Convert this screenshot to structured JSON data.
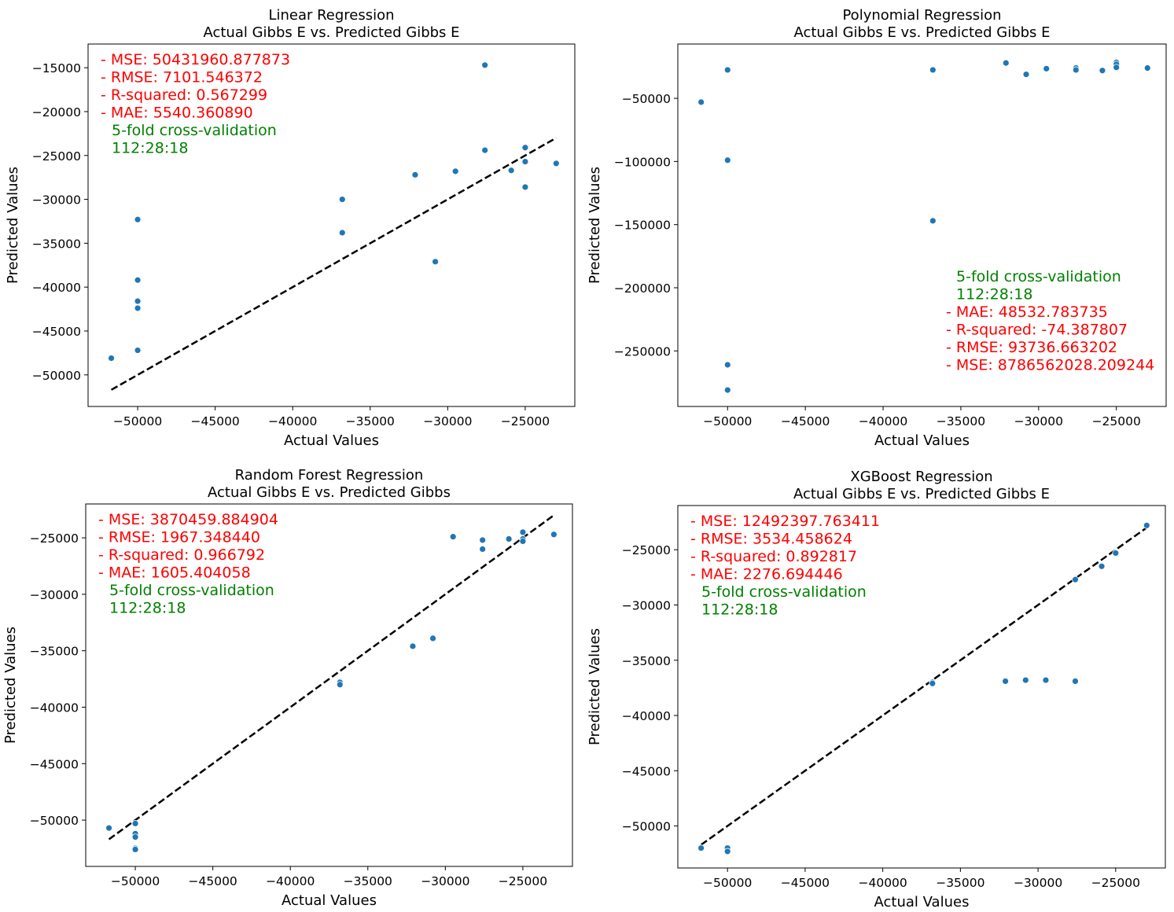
{
  "chart_data": [
    {
      "type": "scatter",
      "title": "Linear Regression",
      "subtitle": "Actual Gibbs E vs. Predicted Gibbs E",
      "xlabel": "Actual Values",
      "ylabel": "Predicted Values",
      "xlim": [
        -53200,
        -21800
      ],
      "ylim": [
        -53600,
        -12300
      ],
      "xticks": [
        -50000,
        -45000,
        -40000,
        -35000,
        -30000,
        -25000
      ],
      "yticks": [
        -50000,
        -45000,
        -40000,
        -35000,
        -30000,
        -25000,
        -20000,
        -15000
      ],
      "tick_labels_x": [
        "−50000",
        "−45000",
        "−40000",
        "−35000",
        "−30000",
        "−25000"
      ],
      "tick_labels_y": [
        "−50000",
        "−45000",
        "−40000",
        "−35000",
        "−30000",
        "−25000",
        "−20000",
        "−15000"
      ],
      "grid": false,
      "reference_line": {
        "x": [
          -51700,
          -23000
        ],
        "y": [
          -51700,
          -23000
        ],
        "style": "dashed",
        "color": "#000000"
      },
      "point_color": "#1f77b4",
      "points": {
        "x": [
          -51700,
          -50000,
          -50000,
          -50000,
          -50000,
          -50000,
          -36800,
          -36800,
          -32100,
          -30800,
          -29500,
          -27600,
          -27600,
          -25900,
          -25000,
          -25000,
          -25000,
          -23000
        ],
        "y": [
          -48100,
          -32300,
          -39200,
          -41600,
          -42400,
          -47200,
          -30000,
          -33800,
          -27200,
          -37100,
          -26800,
          -14700,
          -24400,
          -26700,
          -24100,
          -25700,
          -28600,
          -25900
        ]
      },
      "annotations": [
        {
          "text": "- MSE: 50431960.877873",
          "color": "#ff0000"
        },
        {
          "text": "- RMSE: 7101.546372",
          "color": "#ff0000"
        },
        {
          "text": "- R-squared: 0.567299",
          "color": "#ff0000"
        },
        {
          "text": "- MAE: 5540.360890",
          "color": "#ff0000"
        },
        {
          "text": "5-fold cross-validation",
          "color": "#008000"
        },
        {
          "text": "112:28:18",
          "color": "#008000"
        }
      ]
    },
    {
      "type": "scatter",
      "title": "Polynomial Regression",
      "subtitle": "Actual Gibbs E vs. Predicted Gibbs E",
      "xlabel": "Actual Values",
      "ylabel": "Predicted Values",
      "xlim": [
        -53200,
        -21800
      ],
      "ylim": [
        -294000,
        -7000
      ],
      "xticks": [
        -50000,
        -45000,
        -40000,
        -35000,
        -30000,
        -25000
      ],
      "yticks": [
        -250000,
        -200000,
        -150000,
        -100000,
        -50000
      ],
      "tick_labels_x": [
        "−50000",
        "−45000",
        "−40000",
        "−35000",
        "−30000",
        "−25000"
      ],
      "tick_labels_y": [
        "−250000",
        "−200000",
        "−150000",
        "−100000",
        "−50000"
      ],
      "grid": false,
      "point_color": "#1f77b4",
      "points": {
        "x": [
          -51700,
          -50000,
          -50000,
          -50000,
          -50000,
          -36800,
          -36800,
          -32100,
          -30800,
          -29500,
          -27600,
          -27600,
          -25900,
          -25000,
          -25000,
          -25000,
          -23000
        ],
        "y": [
          -53000,
          -27500,
          -99000,
          -261000,
          -281000,
          -27500,
          -147000,
          -22000,
          -31000,
          -26500,
          -26000,
          -27500,
          -28000,
          -21500,
          -23000,
          -25500,
          -26000
        ]
      },
      "annotations": [
        {
          "text": "5-fold cross-validation",
          "color": "#008000"
        },
        {
          "text": "112:28:18",
          "color": "#008000"
        },
        {
          "text": "- MAE: 48532.783735",
          "color": "#ff0000"
        },
        {
          "text": "- R-squared: -74.387807",
          "color": "#ff0000"
        },
        {
          "text": "- RMSE: 93736.663202",
          "color": "#ff0000"
        },
        {
          "text": "- MSE: 8786562028.209244",
          "color": "#ff0000"
        }
      ]
    },
    {
      "type": "scatter",
      "title": "Random Forest Regression",
      "subtitle": "Actual Gibbs E vs. Predicted Gibbs",
      "xlabel": "Actual Values",
      "ylabel": "Predicted Values",
      "xlim": [
        -53200,
        -21800
      ],
      "ylim": [
        -54100,
        -22000
      ],
      "xticks": [
        -50000,
        -45000,
        -40000,
        -35000,
        -30000,
        -25000
      ],
      "yticks": [
        -50000,
        -45000,
        -40000,
        -35000,
        -30000,
        -25000
      ],
      "tick_labels_x": [
        "−50000",
        "−45000",
        "−40000",
        "−35000",
        "−30000",
        "−25000"
      ],
      "tick_labels_y": [
        "−50000",
        "−45000",
        "−40000",
        "−35000",
        "−30000",
        "−25000"
      ],
      "grid": false,
      "reference_line": {
        "x": [
          -51700,
          -23000
        ],
        "y": [
          -51700,
          -23000
        ],
        "style": "dashed",
        "color": "#000000"
      },
      "point_color": "#1f77b4",
      "points": {
        "x": [
          -51700,
          -50000,
          -50000,
          -50000,
          -50000,
          -50000,
          -36800,
          -36800,
          -32100,
          -30800,
          -29500,
          -27600,
          -27600,
          -25900,
          -25000,
          -25000,
          -25000,
          -23000
        ],
        "y": [
          -50700,
          -50300,
          -51200,
          -51500,
          -52500,
          -52600,
          -37800,
          -38000,
          -34600,
          -33900,
          -24900,
          -25200,
          -26000,
          -25100,
          -24500,
          -25100,
          -25300,
          -24700
        ]
      },
      "annotations": [
        {
          "text": "- MSE: 3870459.884904",
          "color": "#ff0000"
        },
        {
          "text": "- RMSE: 1967.348440",
          "color": "#ff0000"
        },
        {
          "text": "- R-squared: 0.966792",
          "color": "#ff0000"
        },
        {
          "text": "- MAE: 1605.404058",
          "color": "#ff0000"
        },
        {
          "text": "5-fold cross-validation",
          "color": "#008000"
        },
        {
          "text": "112:28:18",
          "color": "#008000"
        }
      ]
    },
    {
      "type": "scatter",
      "title": "XGBoost Regression",
      "subtitle": "Actual Gibbs E vs. Predicted Gibbs E",
      "xlabel": "Actual Values",
      "ylabel": "Predicted Values",
      "xlim": [
        -53200,
        -21800
      ],
      "ylim": [
        -53800,
        -21000
      ],
      "xticks": [
        -50000,
        -45000,
        -40000,
        -35000,
        -30000,
        -25000
      ],
      "yticks": [
        -50000,
        -45000,
        -40000,
        -35000,
        -30000,
        -25000
      ],
      "tick_labels_x": [
        "−50000",
        "−45000",
        "−40000",
        "−35000",
        "−30000",
        "−25000"
      ],
      "tick_labels_y": [
        "−50000",
        "−45000",
        "−40000",
        "−35000",
        "−30000",
        "−25000"
      ],
      "grid": false,
      "reference_line": {
        "x": [
          -51700,
          -23000
        ],
        "y": [
          -51700,
          -23000
        ],
        "style": "dashed",
        "color": "#000000"
      },
      "point_color": "#1f77b4",
      "points": {
        "x": [
          -51700,
          -50000,
          -50000,
          -36800,
          -36800,
          -32100,
          -30800,
          -29500,
          -27600,
          -27600,
          -25900,
          -25000,
          -23000
        ],
        "y": [
          -52000,
          -52000,
          -52300,
          -37000,
          -37100,
          -36900,
          -36800,
          -36800,
          -36900,
          -27700,
          -26500,
          -25300,
          -22800
        ]
      },
      "annotations": [
        {
          "text": "- MSE: 12492397.763411",
          "color": "#ff0000"
        },
        {
          "text": "- RMSE: 3534.458624",
          "color": "#ff0000"
        },
        {
          "text": "- R-squared: 0.892817",
          "color": "#ff0000"
        },
        {
          "text": "- MAE: 2276.694446",
          "color": "#ff0000"
        },
        {
          "text": "5-fold cross-validation",
          "color": "#008000"
        },
        {
          "text": "112:28:18",
          "color": "#008000"
        }
      ]
    }
  ]
}
